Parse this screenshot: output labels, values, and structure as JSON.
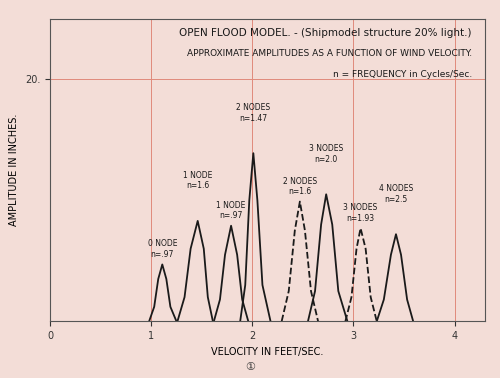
{
  "chart_data": {
    "type": "line",
    "title": "OPEN FLOOD MODEL. - (Shipmodel structure 20% light.)",
    "subtitle": "APPROXIMATE AMPLITUDES AS A FUNCTION OF WIND VELOCITY.",
    "note": "n = FREQUENCY in Cycles/Sec.",
    "x_label": "VELOCITY IN FEET/SEC.",
    "y_label": "AMPLITUDE IN INCHES.",
    "footer": "①",
    "xlim": [
      0,
      4.3
    ],
    "ylim": [
      0,
      25
    ],
    "xticks": [
      0,
      1,
      2,
      3,
      4
    ],
    "yticks": [
      {
        "value": 20,
        "label": "20."
      }
    ],
    "grid": true,
    "color": "#1a1a1a",
    "series": [
      {
        "annotation": "0 NODE\nn=.97",
        "line_style": "solid",
        "x": [
          0.98,
          1.03,
          1.07,
          1.11,
          1.15,
          1.19,
          1.25
        ],
        "values": [
          0,
          1.2,
          3.5,
          4.7,
          3.5,
          1.2,
          0
        ]
      },
      {
        "annotation": "1 NODE\nn=1.6",
        "line_style": "solid",
        "x": [
          1.26,
          1.33,
          1.39,
          1.46,
          1.52,
          1.56,
          1.61
        ],
        "values": [
          0,
          2.0,
          6.0,
          8.3,
          6.0,
          2.0,
          0
        ]
      },
      {
        "annotation": "1 NODE\nn=.97",
        "line_style": "solid",
        "x": [
          1.62,
          1.68,
          1.73,
          1.79,
          1.85,
          1.9,
          1.96
        ],
        "values": [
          0,
          1.8,
          5.5,
          7.9,
          5.5,
          1.8,
          0
        ]
      },
      {
        "annotation": "2 NODES\nn=1.47",
        "line_style": "solid",
        "x": [
          1.88,
          1.93,
          1.97,
          2.01,
          2.05,
          2.1,
          2.18
        ],
        "values": [
          0,
          3,
          10,
          13.9,
          10,
          3,
          0
        ]
      },
      {
        "annotation": "2 NODES\nn=1.6",
        "line_style": "dashed",
        "x": [
          2.29,
          2.36,
          2.42,
          2.47,
          2.52,
          2.58,
          2.65
        ],
        "values": [
          0,
          2.5,
          7.5,
          9.9,
          7.5,
          2.5,
          0
        ]
      },
      {
        "annotation": "3 NODES\nn=2.0",
        "line_style": "solid",
        "x": [
          2.55,
          2.62,
          2.68,
          2.73,
          2.79,
          2.85,
          2.94
        ],
        "values": [
          0,
          2.5,
          8,
          10.5,
          8,
          2.5,
          0
        ]
      },
      {
        "annotation": "3 NODES\nn=1.93",
        "line_style": "dashed",
        "x": [
          2.92,
          2.98,
          3.03,
          3.07,
          3.12,
          3.17,
          3.23
        ],
        "values": [
          0,
          2,
          6,
          7.7,
          6,
          2,
          0
        ]
      },
      {
        "annotation": "4 NODES\nn=2.5",
        "line_style": "solid",
        "x": [
          3.23,
          3.3,
          3.37,
          3.42,
          3.47,
          3.53,
          3.59
        ],
        "values": [
          0,
          1.8,
          5.5,
          7.2,
          5.5,
          1.8,
          0
        ]
      }
    ]
  }
}
